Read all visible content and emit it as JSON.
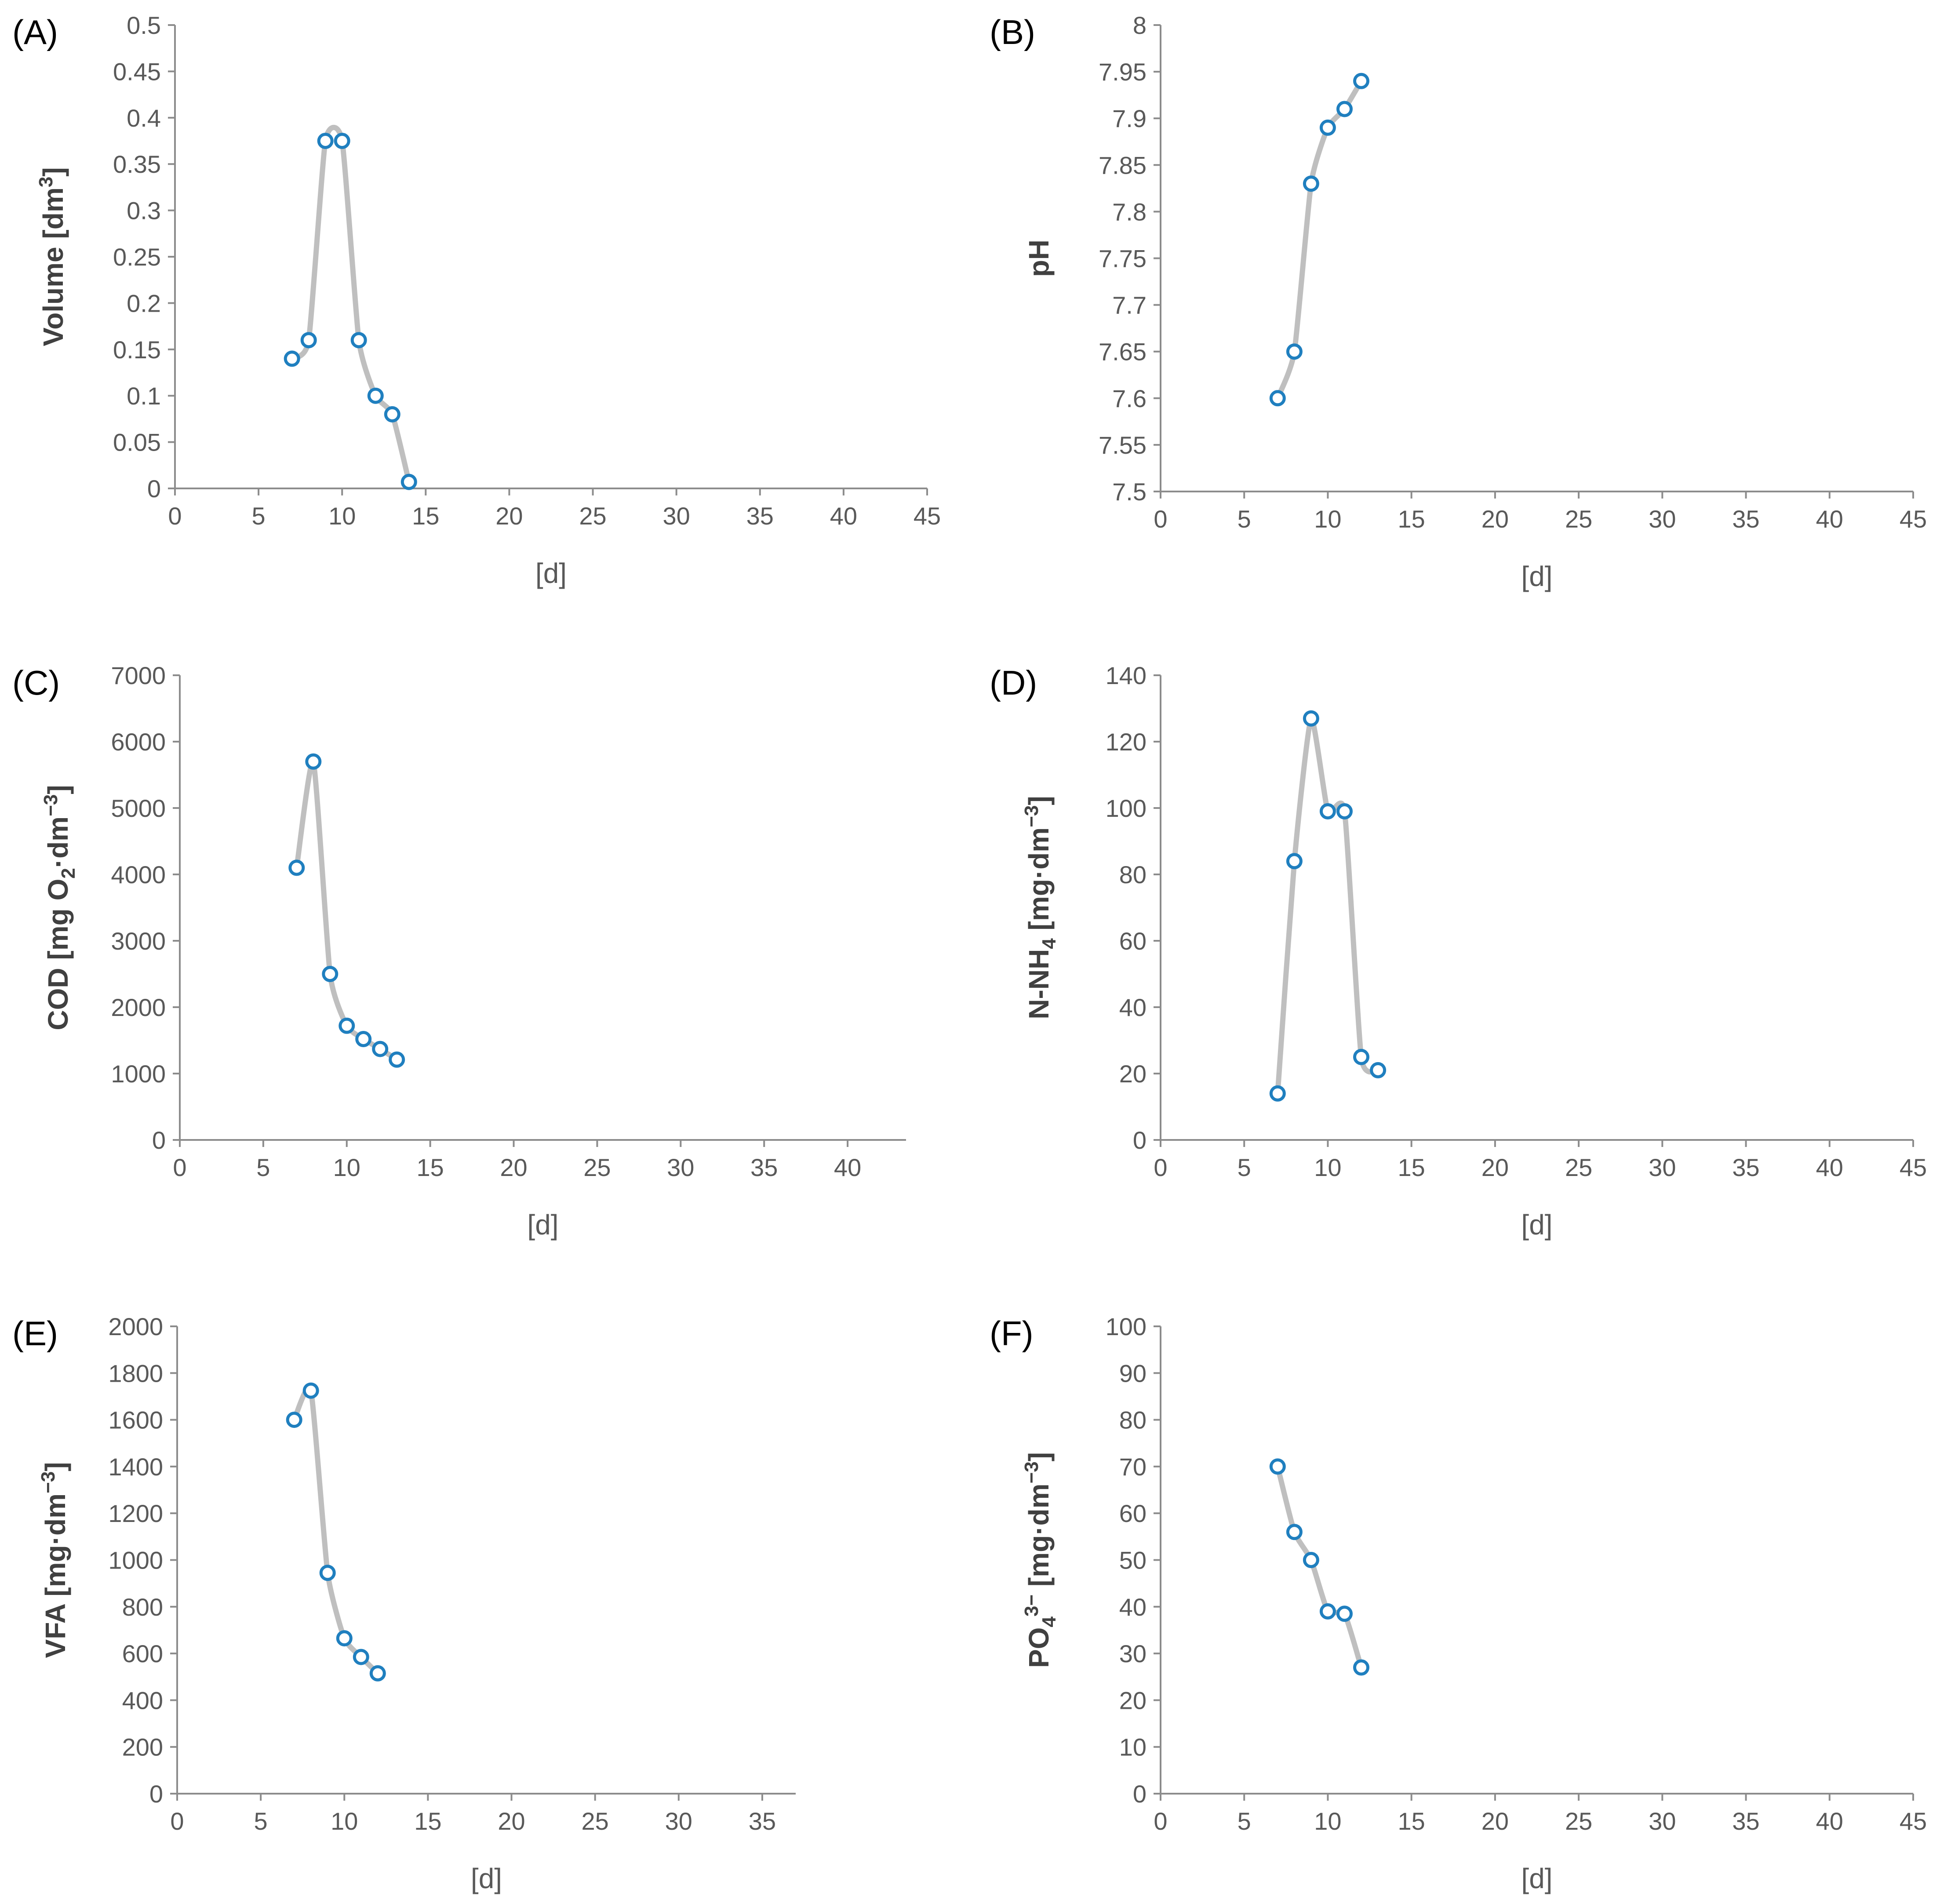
{
  "chart_data": [
    {
      "panel": "(A)",
      "type": "line",
      "xlabel": "[d]",
      "ylabel": "Volume [dm³]",
      "xlim": [
        0,
        45
      ],
      "ylim": [
        0,
        0.5
      ],
      "x_ticks": [
        "0",
        "5",
        "10",
        "15",
        "20",
        "25",
        "30",
        "35",
        "40",
        "45"
      ],
      "y_ticks": [
        "0",
        "0.05",
        "0.1",
        "0.15",
        "0.2",
        "0.25",
        "0.3",
        "0.35",
        "0.4",
        "0.45",
        "0.5"
      ],
      "grid": false,
      "series": [
        {
          "x": [
            7,
            8,
            9,
            10,
            11,
            12,
            13,
            14
          ],
          "y": [
            0.14,
            0.16,
            0.375,
            0.375,
            0.16,
            0.1,
            0.08,
            0.007
          ]
        }
      ]
    },
    {
      "panel": "(B)",
      "type": "line",
      "xlabel": "[d]",
      "ylabel": "pH",
      "xlim": [
        0,
        45
      ],
      "ylim": [
        7.5,
        8
      ],
      "x_ticks": [
        "0",
        "5",
        "10",
        "15",
        "20",
        "25",
        "30",
        "35",
        "40",
        "45"
      ],
      "y_ticks": [
        "7.5",
        "7.55",
        "7.6",
        "7.65",
        "7.7",
        "7.75",
        "7.8",
        "7.85",
        "7.9",
        "7.95",
        "8"
      ],
      "grid": false,
      "series": [
        {
          "x": [
            7,
            8,
            9,
            10,
            11,
            12
          ],
          "y": [
            7.6,
            7.65,
            7.83,
            7.89,
            7.91,
            7.94
          ]
        }
      ]
    },
    {
      "panel": "(C)",
      "type": "line",
      "xlabel": "[d]",
      "ylabel": "COD [mg O₂·dm⁻³]",
      "xlim": [
        0,
        43.5
      ],
      "ylim": [
        0,
        7000
      ],
      "x_ticks": [
        "0",
        "5",
        "10",
        "15",
        "20",
        "25",
        "30",
        "35",
        "40"
      ],
      "y_ticks": [
        "0",
        "1000",
        "2000",
        "3000",
        "4000",
        "5000",
        "6000",
        "7000"
      ],
      "grid": false,
      "series": [
        {
          "x": [
            7,
            8,
            9,
            10,
            11,
            12,
            13
          ],
          "y": [
            4100,
            5700,
            2500,
            1720,
            1520,
            1370,
            1210
          ]
        }
      ]
    },
    {
      "panel": "(D)",
      "type": "line",
      "xlabel": "[d]",
      "ylabel": "N-NH₄ [mg·dm⁻³]",
      "xlim": [
        0,
        45
      ],
      "ylim": [
        0,
        140
      ],
      "x_ticks": [
        "0",
        "5",
        "10",
        "15",
        "20",
        "25",
        "30",
        "35",
        "40",
        "45"
      ],
      "y_ticks": [
        "0",
        "20",
        "40",
        "60",
        "80",
        "100",
        "120",
        "140"
      ],
      "grid": false,
      "series": [
        {
          "x": [
            7,
            8,
            9,
            10,
            11,
            12,
            13
          ],
          "y": [
            14,
            84,
            127,
            99,
            99,
            25,
            21
          ]
        }
      ]
    },
    {
      "panel": "(E)",
      "type": "line",
      "xlabel": "[d]",
      "ylabel": "VFA [mg·dm⁻³]",
      "xlim": [
        0,
        37
      ],
      "ylim": [
        0,
        2000
      ],
      "x_ticks": [
        "0",
        "5",
        "10",
        "15",
        "20",
        "25",
        "30",
        "35"
      ],
      "y_ticks": [
        "0",
        "200",
        "400",
        "600",
        "800",
        "1000",
        "1200",
        "1400",
        "1600",
        "1800",
        "2000"
      ],
      "grid": false,
      "series": [
        {
          "x": [
            7,
            8,
            9,
            10,
            11,
            12
          ],
          "y": [
            1600,
            1725,
            945,
            665,
            585,
            515
          ]
        }
      ]
    },
    {
      "panel": "(F)",
      "type": "line",
      "xlabel": "[d]",
      "ylabel": "PO₄³⁻ [mg·dm⁻³]",
      "xlim": [
        0,
        45
      ],
      "ylim": [
        0,
        100
      ],
      "x_ticks": [
        "0",
        "5",
        "10",
        "15",
        "20",
        "25",
        "30",
        "35",
        "40",
        "45"
      ],
      "y_ticks": [
        "0",
        "10",
        "20",
        "30",
        "40",
        "50",
        "60",
        "70",
        "80",
        "90",
        "100"
      ],
      "grid": false,
      "series": [
        {
          "x": [
            7,
            8,
            9,
            10,
            11,
            12
          ],
          "y": [
            70,
            56,
            50,
            39,
            38.5,
            27
          ]
        }
      ]
    }
  ],
  "colors": {
    "line": "#bfbfbf",
    "marker_edge": "#1f7fbf",
    "marker_fill": "#ffffff",
    "axis": "#8c8c8c",
    "tick_text": "#595959"
  }
}
